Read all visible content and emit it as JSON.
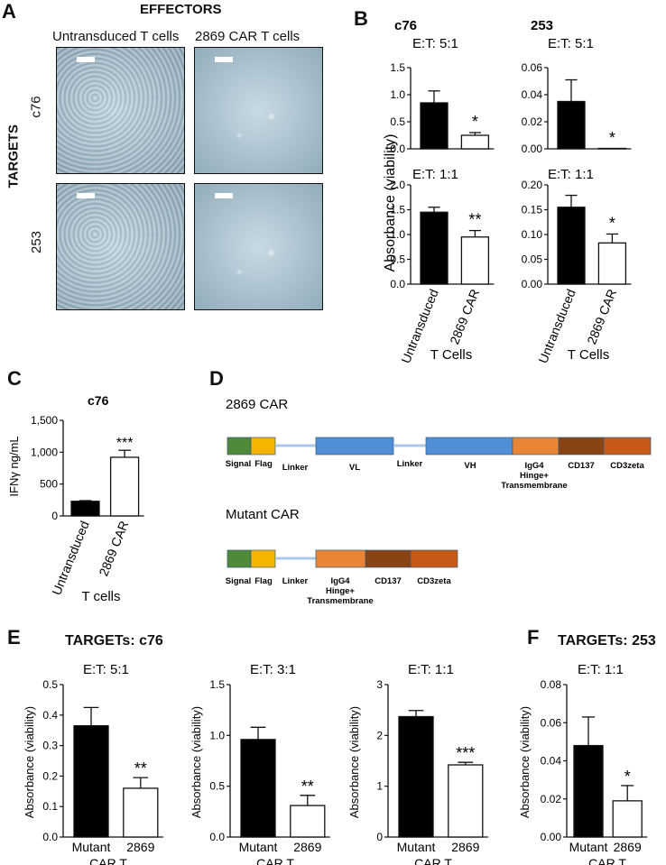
{
  "panel_labels": {
    "a": "A",
    "b": "B",
    "c": "C",
    "d": "D",
    "e": "E",
    "f": "F"
  },
  "panelA": {
    "effectors_title": "EFFECTORS",
    "col1": "Untransduced  T cells",
    "col2": "2869  CAR T cells",
    "targets_label": "TARGETS",
    "row1": "c76",
    "row2": "253"
  },
  "panelB_charts": [
    {
      "id": "b_c76_51",
      "title": "c76",
      "et": "E:T: 5:1",
      "ylim": [
        0,
        1.5
      ],
      "ticks": [
        "0.0",
        "0.5",
        "1.0",
        "1.5"
      ],
      "values": [
        0.85,
        0.25
      ],
      "errors": [
        0.22,
        0.05
      ],
      "sig": "*",
      "xlabels": []
    },
    {
      "id": "b_253_51",
      "title": "253",
      "et": "E:T: 5:1",
      "ylim": [
        0,
        0.06
      ],
      "ticks": [
        "0.00",
        "0.02",
        "0.04",
        "0.06"
      ],
      "values": [
        0.035,
        0.0
      ],
      "errors": [
        0.016,
        0.0
      ],
      "sig": "*",
      "xlabels": []
    },
    {
      "id": "b_c76_11",
      "title": "",
      "et": "E:T: 1:1",
      "ylim": [
        0,
        2.0
      ],
      "ticks": [
        "0.0",
        "0.5",
        "1.0",
        "1.5",
        "2.0"
      ],
      "values": [
        1.45,
        0.95
      ],
      "errors": [
        0.1,
        0.13
      ],
      "sig": "**",
      "xlabels": [
        "Untransduced",
        "2869 CAR"
      ],
      "xtitle": "T Cells"
    },
    {
      "id": "b_253_11",
      "title": "",
      "et": "E:T: 1:1",
      "ylim": [
        0,
        0.2
      ],
      "ticks": [
        "0.00",
        "0.05",
        "0.10",
        "0.15",
        "0.20"
      ],
      "values": [
        0.155,
        0.083
      ],
      "errors": [
        0.024,
        0.018
      ],
      "sig": "*",
      "xlabels": [
        "Untransduced",
        "2869 CAR"
      ],
      "xtitle": "T Cells"
    }
  ],
  "panelB_ylabel": "Absorbance (viability)",
  "panelC": {
    "title": "c76",
    "ylabel": "IFNγ ng/mL",
    "ylim": [
      0,
      1500
    ],
    "ticks": [
      "0",
      "500",
      "1,000",
      "1,500"
    ],
    "values": [
      230,
      920
    ],
    "errors": [
      10,
      110
    ],
    "sig": "***",
    "xlabels": [
      "Untransduced",
      "2869 CAR"
    ],
    "xtitle": "T cells"
  },
  "panelD": {
    "car1_title": "2869  CAR",
    "car2_title": "Mutant  CAR",
    "car1_labels": [
      "Signal",
      "Flag",
      "Linker",
      "VL",
      "Linker",
      "VH",
      "IgG4 Hinge+ Transmembrane",
      "CD137",
      "CD3zeta"
    ],
    "car2_labels": [
      "Signal",
      "Flag",
      "Linker",
      "IgG4 Hinge+ Transmembrane",
      "CD137",
      "CD3zeta"
    ],
    "colors": {
      "signal": "#4e8a3a",
      "flag": "#f5b400",
      "linker": "#a9c8ea",
      "domain": "#4f8fd6",
      "igg4": "#e98535",
      "cd137": "#8a4313",
      "cd3": "#c85a17"
    }
  },
  "panelE": {
    "title": "TARGETs:  c76",
    "ylabel": "Absorbance (viability)",
    "xtitle": "CAR T",
    "xlabels": [
      "Mutant",
      "2869"
    ],
    "charts": [
      {
        "id": "e1",
        "et": "E:T: 5:1",
        "ylim": [
          0,
          0.5
        ],
        "ticks": [
          "0.0",
          "0.1",
          "0.2",
          "0.3",
          "0.4",
          "0.5"
        ],
        "values": [
          0.365,
          0.16
        ],
        "errors": [
          0.06,
          0.035
        ],
        "sig": "**"
      },
      {
        "id": "e2",
        "et": "E:T: 3:1",
        "ylim": [
          0,
          1.5
        ],
        "ticks": [
          "0.0",
          "0.5",
          "1.0",
          "1.5"
        ],
        "values": [
          0.96,
          0.31
        ],
        "errors": [
          0.12,
          0.1
        ],
        "sig": "**"
      },
      {
        "id": "e3",
        "et": "E:T: 1:1",
        "ylim": [
          0,
          3
        ],
        "ticks": [
          "0",
          "1",
          "2",
          "3"
        ],
        "values": [
          2.37,
          1.42
        ],
        "errors": [
          0.12,
          0.05
        ],
        "sig": "***"
      }
    ]
  },
  "panelF": {
    "title": "TARGETs:  253",
    "ylabel": "Absorbance (viability)",
    "xtitle": "CAR T",
    "xlabels": [
      "Mutant",
      "2869"
    ],
    "chart": {
      "id": "f1",
      "et": "E:T: 1:1",
      "ylim": [
        0,
        0.08
      ],
      "ticks": [
        "0.00",
        "0.02",
        "0.04",
        "0.06",
        "0.08"
      ],
      "values": [
        0.048,
        0.019
      ],
      "errors": [
        0.015,
        0.008
      ],
      "sig": "*"
    }
  },
  "chart_data": [
    {
      "type": "bar",
      "title": "c76",
      "categories": [
        "Untransduced",
        "2869 CAR"
      ],
      "values": [
        0.85,
        0.25
      ],
      "ylabel": "Absorbance (viability)",
      "ylim": [
        0,
        1.5
      ]
    },
    {
      "type": "bar",
      "title": "253",
      "categories": [
        "Untransduced",
        "2869 CAR"
      ],
      "values": [
        0.035,
        0.0
      ],
      "ylabel": "Absorbance (viability)",
      "ylim": [
        0,
        0.06
      ]
    },
    {
      "type": "bar",
      "title": "",
      "categories": [
        "Untransduced",
        "2869 CAR"
      ],
      "values": [
        1.45,
        0.95
      ],
      "ylabel": "Absorbance (viability)",
      "xlabel": "T Cells",
      "ylim": [
        0,
        2.0
      ]
    },
    {
      "type": "bar",
      "title": "",
      "categories": [
        "Untransduced",
        "2869 CAR"
      ],
      "values": [
        0.155,
        0.083
      ],
      "ylabel": "Absorbance (viability)",
      "xlabel": "T Cells",
      "ylim": [
        0,
        0.2
      ]
    },
    {
      "type": "bar",
      "title": "c76",
      "categories": [
        "Untransduced",
        "2869 CAR"
      ],
      "values": [
        230,
        920
      ],
      "ylabel": "IFNγ ng/mL",
      "xlabel": "T cells",
      "ylim": [
        0,
        1500
      ]
    },
    {
      "type": "bar",
      "title": "",
      "categories": [
        "Mutant",
        "2869"
      ],
      "values": [
        0.365,
        0.16
      ],
      "ylabel": "Absorbance (viability)",
      "xlabel": "CAR T",
      "ylim": [
        0,
        0.5
      ]
    },
    {
      "type": "bar",
      "title": "",
      "categories": [
        "Mutant",
        "2869"
      ],
      "values": [
        0.96,
        0.31
      ],
      "ylabel": "Absorbance (viability)",
      "xlabel": "CAR T",
      "ylim": [
        0,
        1.5
      ]
    },
    {
      "type": "bar",
      "title": "",
      "categories": [
        "Mutant",
        "2869"
      ],
      "values": [
        2.37,
        1.42
      ],
      "ylabel": "Absorbance (viability)",
      "xlabel": "CAR T",
      "ylim": [
        0,
        3
      ]
    },
    {
      "type": "bar",
      "title": "",
      "categories": [
        "Mutant",
        "2869"
      ],
      "values": [
        0.048,
        0.019
      ],
      "ylabel": "Absorbance (viability)",
      "xlabel": "CAR T",
      "ylim": [
        0,
        0.08
      ]
    }
  ]
}
